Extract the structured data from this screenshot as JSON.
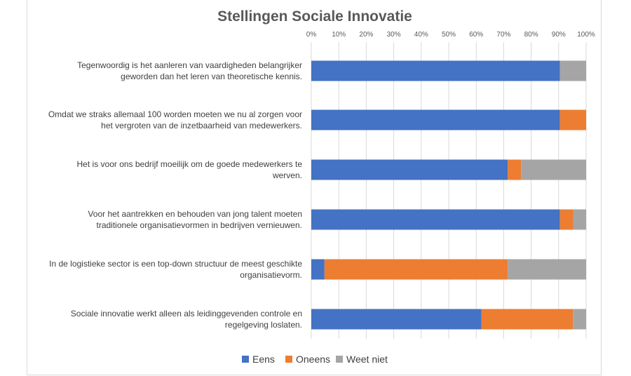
{
  "chart_data": {
    "type": "bar",
    "orientation": "horizontal",
    "stacked": true,
    "title": "Stellingen Sociale Innovatie",
    "xlim": [
      0,
      100
    ],
    "x_ticks": [
      0,
      10,
      20,
      30,
      40,
      50,
      60,
      70,
      80,
      90,
      100
    ],
    "x_tick_labels": [
      "0%",
      "10%",
      "20%",
      "30%",
      "40%",
      "50%",
      "60%",
      "70%",
      "80%",
      "90%",
      "100%"
    ],
    "x_axis_position": "top",
    "grid": true,
    "legend_position": "bottom",
    "categories": [
      [
        "Tegenwoordig is het aanleren van vaardigheden belangrijker",
        "geworden dan het leren van theoretische kennis."
      ],
      [
        "Omdat we straks allemaal 100 worden moeten we  nu al zorgen voor",
        "het vergroten van de inzetbaarheid van medewerkers."
      ],
      [
        "Het is voor ons bedrijf moeilijk om de goede medewerkers te",
        "werven."
      ],
      [
        "Voor het aantrekken en behouden van jong talent moeten",
        "traditionele organisatievormen in bedrijven vernieuwen."
      ],
      [
        "In de logistieke sector is een top-down structuur de meest geschikte",
        "organisatievorm."
      ],
      [
        "Sociale innovatie werkt alleen als leidinggevenden controle en",
        "regelgeving loslaten."
      ]
    ],
    "series": [
      {
        "name": "Eens",
        "color": "#4472C4",
        "values": [
          90.5,
          90.5,
          71.5,
          90.5,
          4.8,
          61.9
        ]
      },
      {
        "name": "Oneens",
        "color": "#ED7D31",
        "values": [
          0,
          9.5,
          4.8,
          4.8,
          66.7,
          33.3
        ]
      },
      {
        "name": "Weet niet",
        "color": "#A5A5A5",
        "values": [
          9.5,
          0,
          23.7,
          4.7,
          28.5,
          4.8
        ]
      }
    ]
  }
}
